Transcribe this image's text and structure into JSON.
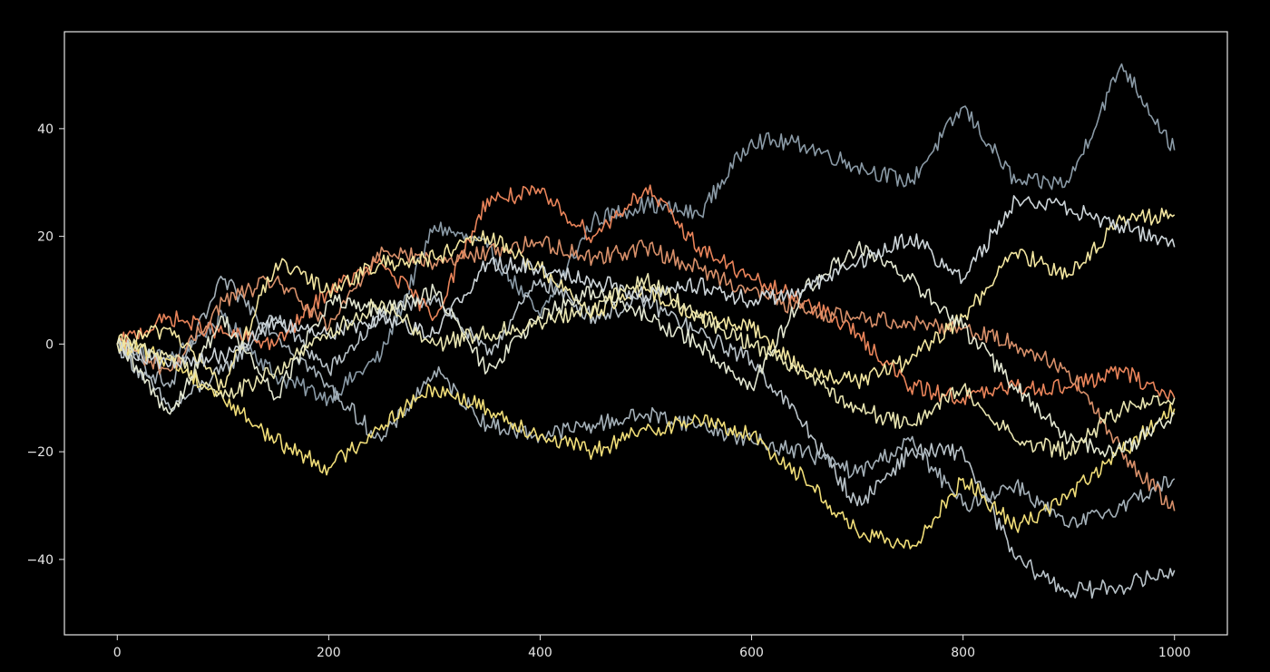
{
  "chart_data": {
    "type": "line",
    "title": "",
    "xlabel": "",
    "ylabel": "",
    "xlim": [
      -50,
      1050
    ],
    "ylim": [
      -54,
      58
    ],
    "x_ticks": [
      0,
      200,
      400,
      600,
      800,
      1000
    ],
    "y_ticks": [
      -40,
      -20,
      0,
      20,
      40
    ],
    "x_tick_labels": [
      "0",
      "200",
      "400",
      "600",
      "800",
      "1000"
    ],
    "y_tick_labels": [
      "−40",
      "−20",
      "0",
      "20",
      "40"
    ],
    "grid": false,
    "legend": "none",
    "background": "#000000",
    "axes_color": "#e6e6e6",
    "series": [
      {
        "color": "#8a9aa6",
        "x": [
          0,
          50,
          100,
          150,
          200,
          250,
          300,
          350,
          400,
          450,
          500,
          550,
          600,
          650,
          700,
          750,
          800,
          850,
          900,
          950,
          1000
        ],
        "y": [
          0,
          -3,
          5,
          -6,
          -10,
          -2,
          22,
          18,
          5,
          23,
          26,
          24,
          38,
          37,
          33,
          30,
          44,
          30,
          30,
          52,
          36
        ]
      },
      {
        "color": "#b8c2c8",
        "x": [
          0,
          50,
          100,
          150,
          200,
          250,
          300,
          350,
          400,
          450,
          500,
          550,
          600,
          650,
          700,
          750,
          800,
          850,
          900,
          950,
          1000
        ],
        "y": [
          0,
          -12,
          -5,
          5,
          -5,
          5,
          9,
          -2,
          12,
          5,
          8,
          2,
          -3,
          -15,
          -30,
          -20,
          -20,
          -40,
          -46,
          -45,
          -42
        ]
      },
      {
        "color": "#a4b0b8",
        "x": [
          0,
          50,
          100,
          150,
          200,
          250,
          300,
          350,
          400,
          450,
          500,
          550,
          600,
          650,
          700,
          750,
          800,
          850,
          900,
          950,
          1000
        ],
        "y": [
          0,
          -8,
          12,
          2,
          -8,
          -18,
          -5,
          -15,
          -17,
          -15,
          -13,
          -15,
          -18,
          -20,
          -24,
          -18,
          -30,
          -26,
          -34,
          -30,
          -25
        ]
      },
      {
        "color": "#e9845a",
        "x": [
          0,
          50,
          100,
          150,
          200,
          250,
          300,
          350,
          400,
          450,
          500,
          550,
          600,
          650,
          700,
          750,
          800,
          850,
          900,
          950,
          1000
        ],
        "y": [
          0,
          5,
          2,
          0,
          10,
          15,
          5,
          27,
          28,
          20,
          29,
          18,
          12,
          8,
          2,
          -8,
          -10,
          -8,
          -8,
          -5,
          -10
        ]
      },
      {
        "color": "#d8906a",
        "x": [
          0,
          50,
          100,
          150,
          200,
          250,
          300,
          350,
          400,
          450,
          500,
          550,
          600,
          650,
          700,
          750,
          800,
          850,
          900,
          950,
          1000
        ],
        "y": [
          0,
          -5,
          8,
          12,
          3,
          18,
          15,
          17,
          19,
          16,
          18,
          14,
          10,
          6,
          5,
          4,
          3,
          0,
          -5,
          -20,
          -31
        ]
      },
      {
        "color": "#f0dd78",
        "x": [
          0,
          50,
          100,
          150,
          200,
          250,
          300,
          350,
          400,
          450,
          500,
          550,
          600,
          650,
          700,
          750,
          800,
          850,
          900,
          950,
          1000
        ],
        "y": [
          0,
          -3,
          -10,
          -18,
          -23,
          -15,
          -8,
          -12,
          -17,
          -20,
          -16,
          -14,
          -17,
          -25,
          -35,
          -38,
          -25,
          -34,
          -28,
          -20,
          -12
        ]
      },
      {
        "color": "#f3e6a0",
        "x": [
          0,
          50,
          100,
          150,
          200,
          250,
          300,
          350,
          400,
          450,
          500,
          550,
          600,
          650,
          700,
          750,
          800,
          850,
          900,
          950,
          1000
        ],
        "y": [
          0,
          3,
          -8,
          15,
          10,
          15,
          16,
          20,
          14,
          6,
          10,
          5,
          3,
          -5,
          -7,
          -3,
          5,
          17,
          13,
          23,
          24
        ]
      },
      {
        "color": "#e2e6d0",
        "x": [
          0,
          50,
          100,
          150,
          200,
          250,
          300,
          350,
          400,
          450,
          500,
          550,
          600,
          650,
          700,
          750,
          800,
          850,
          900,
          950,
          1000
        ],
        "y": [
          0,
          -13,
          5,
          -10,
          8,
          6,
          10,
          -5,
          5,
          10,
          5,
          0,
          -8,
          10,
          18,
          12,
          3,
          -8,
          -18,
          -20,
          -13
        ]
      },
      {
        "color": "#cdd5d9",
        "x": [
          0,
          50,
          100,
          150,
          200,
          250,
          300,
          350,
          400,
          450,
          500,
          550,
          600,
          650,
          700,
          750,
          800,
          850,
          900,
          950,
          1000
        ],
        "y": [
          0,
          -4,
          -2,
          4,
          2,
          5,
          2,
          15,
          14,
          12,
          9,
          11,
          8,
          10,
          15,
          20,
          12,
          27,
          25,
          22,
          18
        ]
      },
      {
        "color": "#e8e4b0",
        "x": [
          0,
          50,
          100,
          150,
          200,
          250,
          300,
          350,
          400,
          450,
          500,
          550,
          600,
          650,
          700,
          750,
          800,
          850,
          900,
          950,
          1000
        ],
        "y": [
          0,
          -2,
          -10,
          -5,
          2,
          8,
          0,
          2,
          4,
          7,
          12,
          5,
          0,
          -5,
          -12,
          -15,
          -8,
          -18,
          -20,
          -12,
          -10
        ]
      }
    ]
  }
}
